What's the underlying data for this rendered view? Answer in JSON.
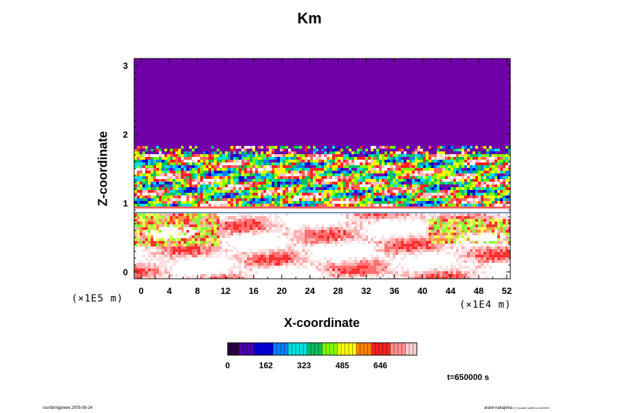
{
  "chart_data": {
    "type": "heatmap",
    "title": "Km",
    "xlabel": "X-coordinate",
    "ylabel": "Z-coordinate",
    "x_scale_note": "(×1E4 m)",
    "y_scale_note": "(×1E5 m)",
    "xlim": [
      -1,
      52.5
    ],
    "ylim": [
      -0.1,
      3.1
    ],
    "x_ticks": [
      0,
      4,
      8,
      12,
      16,
      20,
      24,
      28,
      32,
      36,
      40,
      44,
      48,
      52
    ],
    "y_ticks": [
      0,
      1,
      2,
      3
    ],
    "colorbar": {
      "min": 0,
      "max": 800,
      "tick_values": [
        0,
        162,
        323,
        485,
        646
      ],
      "tick_labels": [
        "0",
        "162",
        "323",
        "485",
        "646"
      ],
      "stops": [
        "#2a0040",
        "#4a00b0",
        "#0000d0",
        "#0080ff",
        "#00e0e0",
        "#00c060",
        "#80ff00",
        "#ffff00",
        "#ff8000",
        "#ff2020",
        "#ff9090",
        "#ffd0d0"
      ]
    },
    "regions": [
      {
        "description": "upper layer",
        "z_range": [
          1.75,
          3.1
        ],
        "value": 0
      },
      {
        "description": "turbulent band",
        "z_range": [
          0.95,
          1.75
        ],
        "value_range": [
          0,
          800
        ]
      },
      {
        "description": "thin layer",
        "z_range": [
          0.87,
          0.92
        ],
        "value": 0
      },
      {
        "description": "lower layer",
        "z_range": [
          -0.1,
          0.87
        ],
        "value_range": [
          200,
          800
        ]
      }
    ],
    "time_label": "t=650000 s"
  },
  "footer": {
    "left": "/usr/bin/gpview 2005-08-24",
    "right_main": "arare-nakajima",
    "right_small": "CO_Kessler.nc@Km,t=650000"
  },
  "colors": {
    "upper_layer": "#7000a8",
    "background": "#ffffff"
  }
}
